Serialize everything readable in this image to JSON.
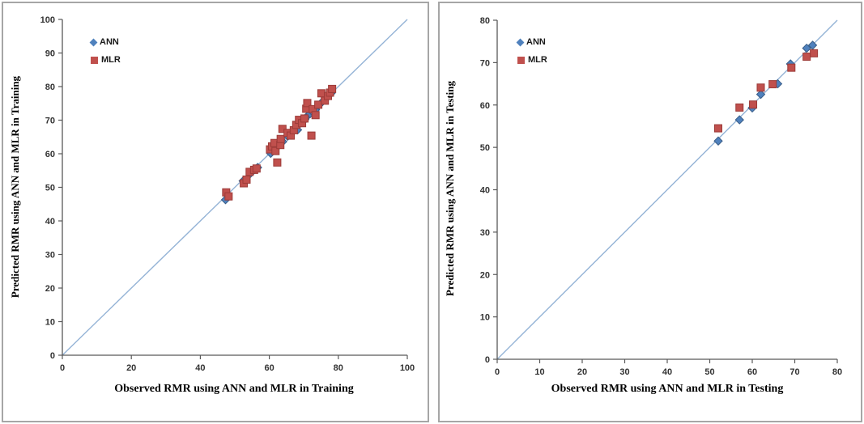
{
  "figure_background": "#ffffff",
  "panel_border_color": "#a6a6a6",
  "axis_color": "#595959",
  "tick_label_color": "#333333",
  "chart_data": [
    {
      "type": "scatter",
      "id": "training",
      "xlabel": "Observed RMR using ANN and MLR in Training",
      "ylabel": "Predicted RMR using ANN and MLR in Training",
      "xlim": [
        0,
        100
      ],
      "ylim": [
        0,
        100
      ],
      "xticks": [
        0,
        20,
        40,
        60,
        80,
        100
      ],
      "yticks": [
        0,
        10,
        20,
        30,
        40,
        50,
        60,
        70,
        80,
        90,
        100
      ],
      "grid": false,
      "legend_position": "inside-top-left",
      "legend": [
        {
          "label": "ANN",
          "marker": "diamond",
          "color": "#4F81BD"
        },
        {
          "label": "MLR",
          "marker": "square",
          "color": "#C0504D"
        }
      ],
      "identity_line": {
        "from": [
          0,
          0
        ],
        "to": [
          100,
          100
        ],
        "color": "#94B3D6"
      },
      "series": [
        {
          "name": "ANN",
          "marker": "diamond",
          "color": "#4F81BD",
          "edge": "#395d87",
          "points": [
            [
              47.3,
              46.3
            ],
            [
              52.4,
              51.9
            ],
            [
              54.6,
              54.2
            ],
            [
              56.6,
              55.9
            ],
            [
              60.4,
              60.1
            ],
            [
              61.2,
              61.6
            ],
            [
              62.4,
              62.1
            ],
            [
              63.9,
              63.6
            ],
            [
              65.3,
              65.2
            ],
            [
              66.4,
              66.5
            ],
            [
              67.3,
              67.4
            ],
            [
              68.2,
              67.1
            ],
            [
              68.8,
              68.9
            ],
            [
              69.6,
              69.5
            ],
            [
              70.3,
              70.2
            ],
            [
              71.0,
              71.2
            ],
            [
              71.8,
              71.9
            ],
            [
              72.6,
              72.4
            ],
            [
              73.4,
              73.1
            ],
            [
              74.3,
              74.4
            ],
            [
              75.2,
              75.3
            ],
            [
              76.2,
              76.3
            ],
            [
              77.1,
              77.2
            ],
            [
              77.9,
              78.0
            ]
          ]
        },
        {
          "name": "MLR",
          "marker": "square",
          "color": "#C0504D",
          "edge": "#9c3b38",
          "points": [
            [
              47.5,
              48.5
            ],
            [
              48.2,
              47.3
            ],
            [
              52.6,
              51.2
            ],
            [
              53.4,
              52.3
            ],
            [
              54.3,
              54.6
            ],
            [
              55.6,
              55.2
            ],
            [
              56.3,
              55.6
            ],
            [
              60.2,
              61.3
            ],
            [
              60.8,
              62.2
            ],
            [
              61.5,
              63.2
            ],
            [
              61.8,
              60.8
            ],
            [
              62.3,
              57.4
            ],
            [
              63.2,
              62.6
            ],
            [
              63.3,
              64.4
            ],
            [
              63.8,
              67.4
            ],
            [
              65.3,
              66.2
            ],
            [
              66.2,
              65.4
            ],
            [
              67.1,
              67.0
            ],
            [
              67.8,
              68.6
            ],
            [
              68.6,
              70.1
            ],
            [
              69.5,
              69.1
            ],
            [
              70.2,
              70.5
            ],
            [
              70.7,
              73.4
            ],
            [
              71.0,
              75.1
            ],
            [
              72.2,
              65.4
            ],
            [
              72.6,
              73.3
            ],
            [
              73.4,
              71.5
            ],
            [
              74.2,
              74.6
            ],
            [
              75.1,
              78.0
            ],
            [
              76.1,
              75.8
            ],
            [
              77.0,
              77.2
            ],
            [
              77.6,
              78.2
            ],
            [
              78.2,
              79.3
            ]
          ]
        }
      ]
    },
    {
      "type": "scatter",
      "id": "testing",
      "xlabel": "Observed RMR using ANN and MLR in Testing",
      "ylabel": "Predicted RMR using ANN and MLR in Testing",
      "xlim": [
        0,
        80
      ],
      "ylim": [
        0,
        80
      ],
      "xticks": [
        0,
        10,
        20,
        30,
        40,
        50,
        60,
        70,
        80
      ],
      "yticks": [
        0,
        10,
        20,
        30,
        40,
        50,
        60,
        70,
        80
      ],
      "grid": false,
      "legend_position": "inside-top-left",
      "legend": [
        {
          "label": "ANN",
          "marker": "diamond",
          "color": "#4F81BD"
        },
        {
          "label": "MLR",
          "marker": "square",
          "color": "#C0504D"
        }
      ],
      "identity_line": {
        "from": [
          0,
          0
        ],
        "to": [
          80,
          80
        ],
        "color": "#94B3D6"
      },
      "series": [
        {
          "name": "ANN",
          "marker": "diamond",
          "color": "#4F81BD",
          "edge": "#395d87",
          "points": [
            [
              52.0,
              51.5
            ],
            [
              57.0,
              56.5
            ],
            [
              60.0,
              59.3
            ],
            [
              62.0,
              62.5
            ],
            [
              66.0,
              65.0
            ],
            [
              69.0,
              69.7
            ],
            [
              72.8,
              73.4
            ],
            [
              74.2,
              74.1
            ]
          ]
        },
        {
          "name": "MLR",
          "marker": "square",
          "color": "#C0504D",
          "edge": "#9c3b38",
          "points": [
            [
              52.0,
              54.5
            ],
            [
              57.0,
              59.4
            ],
            [
              60.2,
              60.1
            ],
            [
              62.0,
              64.1
            ],
            [
              64.8,
              64.9
            ],
            [
              69.2,
              68.8
            ],
            [
              72.8,
              71.4
            ],
            [
              74.5,
              72.2
            ]
          ]
        }
      ]
    }
  ]
}
